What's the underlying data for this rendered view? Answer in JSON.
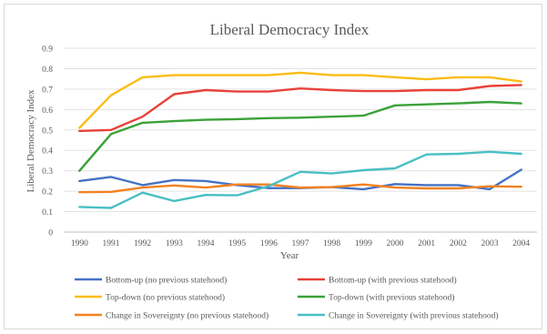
{
  "chart_data": {
    "type": "line",
    "title": "Liberal Democracy Index",
    "xlabel": "Year",
    "ylabel": "Liberal Democracy Index",
    "ylim": [
      0,
      0.9
    ],
    "yticks": [
      "0",
      "0.1",
      "0.2",
      "0.3",
      "0.4",
      "0.5",
      "0.6",
      "0.7",
      "0.8",
      "0.9"
    ],
    "grid": true,
    "legend": "bottom",
    "x": [
      "1990",
      "1991",
      "1992",
      "1993",
      "1994",
      "1995",
      "1996",
      "1997",
      "1998",
      "1999",
      "2000",
      "2001",
      "2002",
      "2003",
      "2004"
    ],
    "series": [
      {
        "name": "Bottom-up (no previous statehood)",
        "color": "#4472c4",
        "values": [
          0.25,
          0.27,
          0.23,
          0.255,
          0.25,
          0.23,
          0.215,
          0.215,
          0.22,
          0.21,
          0.235,
          0.23,
          0.23,
          0.21,
          0.305
        ]
      },
      {
        "name": "Bottom-up (with previous statehood)",
        "color": "#e8423a",
        "values": [
          0.495,
          0.5,
          0.565,
          0.675,
          0.695,
          0.688,
          0.688,
          0.703,
          0.695,
          0.69,
          0.69,
          0.695,
          0.695,
          0.715,
          0.72
        ]
      },
      {
        "name": "Top-down (no previous statehood)",
        "color": "#fbbd14",
        "values": [
          0.51,
          0.67,
          0.758,
          0.768,
          0.768,
          0.768,
          0.768,
          0.78,
          0.768,
          0.768,
          0.758,
          0.748,
          0.758,
          0.758,
          0.737
        ]
      },
      {
        "name": "Top-down (with previous statehood)",
        "color": "#3aa238",
        "values": [
          0.3,
          0.48,
          0.535,
          0.543,
          0.55,
          0.553,
          0.558,
          0.56,
          0.565,
          0.57,
          0.62,
          0.625,
          0.63,
          0.637,
          0.63
        ]
      },
      {
        "name": "Change in Sovereignty (no previous statehood)",
        "color": "#f4811f",
        "values": [
          0.195,
          0.197,
          0.218,
          0.228,
          0.218,
          0.233,
          0.233,
          0.218,
          0.22,
          0.233,
          0.218,
          0.214,
          0.214,
          0.224,
          0.222
        ]
      },
      {
        "name": "Change in Sovereignty (with previous statehood)",
        "color": "#49bfc4",
        "values": [
          0.123,
          0.118,
          0.193,
          0.152,
          0.182,
          0.18,
          0.225,
          0.295,
          0.287,
          0.303,
          0.312,
          0.38,
          0.383,
          0.393,
          0.383
        ]
      }
    ]
  }
}
